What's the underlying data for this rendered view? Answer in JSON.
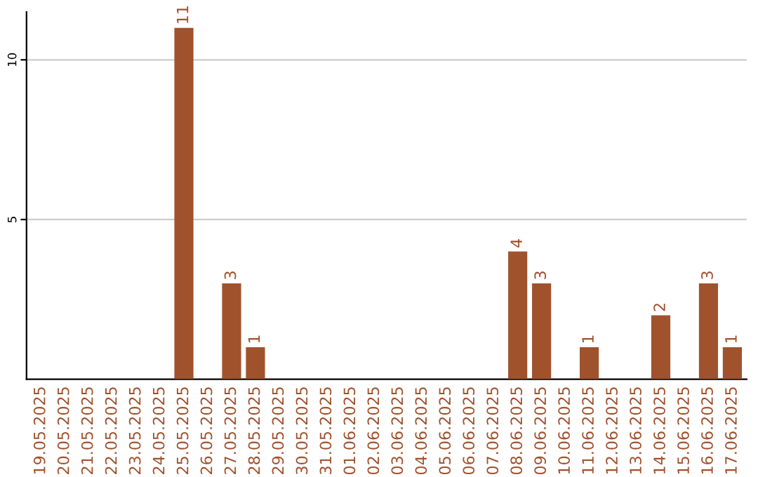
{
  "chart_data": {
    "type": "bar",
    "categories": [
      "19.05.2025",
      "20.05.2025",
      "21.05.2025",
      "22.05.2025",
      "23.05.2025",
      "24.05.2025",
      "25.05.2025",
      "26.05.2025",
      "27.05.2025",
      "28.05.2025",
      "29.05.2025",
      "30.05.2025",
      "31.05.2025",
      "01.06.2025",
      "02.06.2025",
      "03.06.2025",
      "04.06.2025",
      "05.06.2025",
      "06.06.2025",
      "07.06.2025",
      "08.06.2025",
      "09.06.2025",
      "10.06.2025",
      "11.06.2025",
      "12.06.2025",
      "13.06.2025",
      "14.06.2025",
      "15.06.2025",
      "16.06.2025",
      "17.06.2025"
    ],
    "values": [
      0,
      0,
      0,
      0,
      0,
      0,
      11,
      0,
      3,
      1,
      0,
      0,
      0,
      0,
      0,
      0,
      0,
      0,
      0,
      0,
      4,
      3,
      0,
      1,
      0,
      0,
      2,
      0,
      3,
      1
    ],
    "value_labels": [
      null,
      null,
      null,
      null,
      null,
      null,
      "11",
      null,
      "3",
      "1",
      null,
      null,
      null,
      null,
      null,
      null,
      null,
      null,
      null,
      null,
      "4",
      "3",
      null,
      "1",
      null,
      null,
      "2",
      null,
      "3",
      "1"
    ],
    "color": "#a0522d",
    "ylim": [
      0,
      11.5
    ],
    "yticks": [
      5,
      10
    ],
    "grid": "y"
  }
}
